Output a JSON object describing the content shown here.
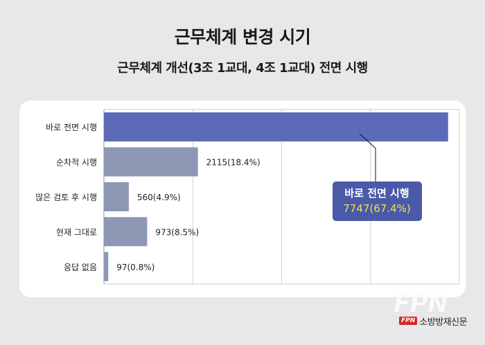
{
  "chart_data": {
    "type": "bar",
    "orientation": "horizontal",
    "title": "근무체계 변경 시기",
    "subtitle": "근무체계 개선(3조 1교대, 4조 1교대) 전면 시행",
    "categories": [
      "바로 전면 시행",
      "순차적 시행",
      "많은 검토 후 시행",
      "현재 그대로",
      "응답 없음"
    ],
    "values": [
      7747,
      2115,
      560,
      973,
      97
    ],
    "data_labels": [
      "",
      "2115(18.4%)",
      "560(4.9%)",
      "973(8.5%)",
      "97(0.8%)"
    ],
    "xlim": [
      0,
      8000
    ],
    "grid": true,
    "highlight_index": 0,
    "callout": {
      "label": "바로 전면 시행",
      "value": "7747(67.4%)"
    },
    "colors": {
      "highlight": "#5b6bb8",
      "bar": "#8d98b5",
      "callout_bg": "#4a5aa8",
      "callout_value": "#f4e04d"
    }
  },
  "branding": {
    "watermark": "FPN",
    "logo_mark": "FPN",
    "logo_text": "소방방재신문"
  }
}
